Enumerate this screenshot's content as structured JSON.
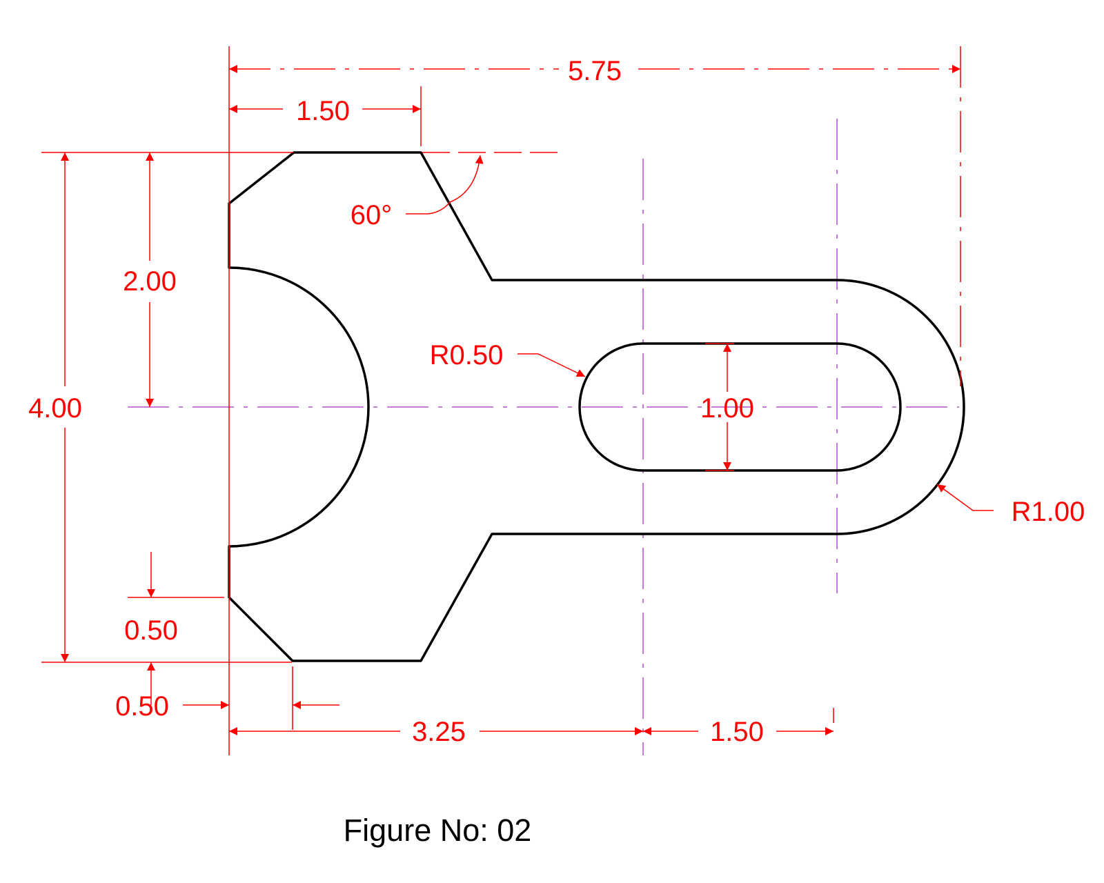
{
  "caption": "Figure No: 02",
  "colors": {
    "outline": "#000000",
    "dimension": "#ff0000",
    "centerline": "#b34dcc",
    "background": "#ffffff"
  },
  "dimensions": {
    "overall_width": "5.75",
    "top_flat": "1.50",
    "angle": "60°",
    "half_height": "2.00",
    "overall_height": "4.00",
    "slot_radius": "R0.50",
    "slot_width": "1.00",
    "end_radius": "R1.00",
    "chamfer_vertical": "0.50",
    "chamfer_horizontal": "0.50",
    "to_slot_center": "3.25",
    "slot_center_distance": "1.50"
  }
}
